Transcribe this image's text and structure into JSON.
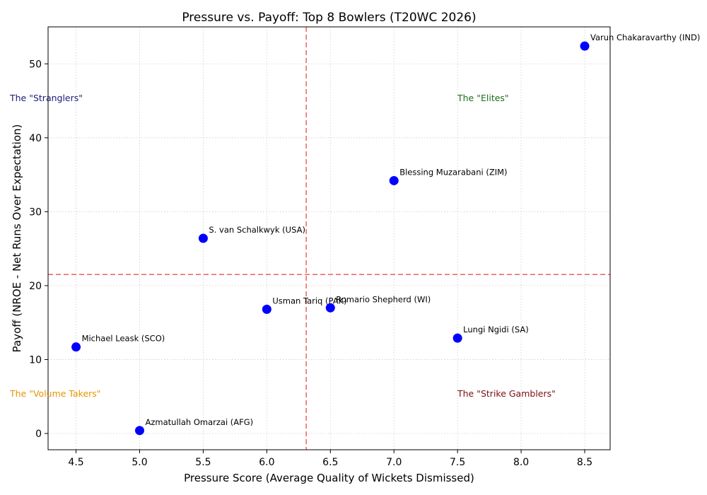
{
  "chart_data": {
    "type": "scatter",
    "title": "Pressure vs. Payoff: Top 8 Bowlers (T20WC 2026)",
    "xlabel": "Pressure Score (Average Quality of Wickets Dismissed)",
    "ylabel": "Payoff (NROE - Net Runs Over Expectation)",
    "xlim": [
      4.28,
      8.7
    ],
    "ylim": [
      -2.2,
      55
    ],
    "xticks": [
      "4.5",
      "5.0",
      "5.5",
      "6.0",
      "6.5",
      "7.0",
      "7.5",
      "8.0",
      "8.5"
    ],
    "yticks": [
      "0",
      "10",
      "20",
      "30",
      "40",
      "50"
    ],
    "grid": true,
    "point_color": "#0000ff",
    "threshold_color": "#ef6b6b",
    "thresholds": {
      "x": 6.31,
      "y": 21.5
    },
    "points": [
      {
        "label": "Varun Chakaravarthy (IND)",
        "x": 8.5,
        "y": 52.4
      },
      {
        "label": "Blessing Muzarabani (ZIM)",
        "x": 7.0,
        "y": 34.2
      },
      {
        "label": "S. van Schalkwyk (USA)",
        "x": 5.5,
        "y": 26.4
      },
      {
        "label": "Usman Tariq (PAK)",
        "x": 6.0,
        "y": 16.8
      },
      {
        "label": "Romario Shepherd (WI)",
        "x": 6.5,
        "y": 17.0
      },
      {
        "label": "Lungi Ngidi (SA)",
        "x": 7.5,
        "y": 12.9
      },
      {
        "label": "Michael Leask (SCO)",
        "x": 4.5,
        "y": 11.7
      },
      {
        "label": "Azmatullah Omarzai (AFG)",
        "x": 5.0,
        "y": 0.4
      }
    ],
    "quadrant_labels": [
      {
        "text": "The \"Stranglers\"",
        "position": "top-left",
        "color": "#1a1a7a"
      },
      {
        "text": "The \"Elites\"",
        "position": "top-right",
        "color": "#1a6e1a"
      },
      {
        "text": "The \"Volume Takers\"",
        "position": "bottom-left",
        "color": "#e69500"
      },
      {
        "text": "The \"Strike Gamblers\"",
        "position": "bottom-right",
        "color": "#7a1010"
      }
    ]
  }
}
